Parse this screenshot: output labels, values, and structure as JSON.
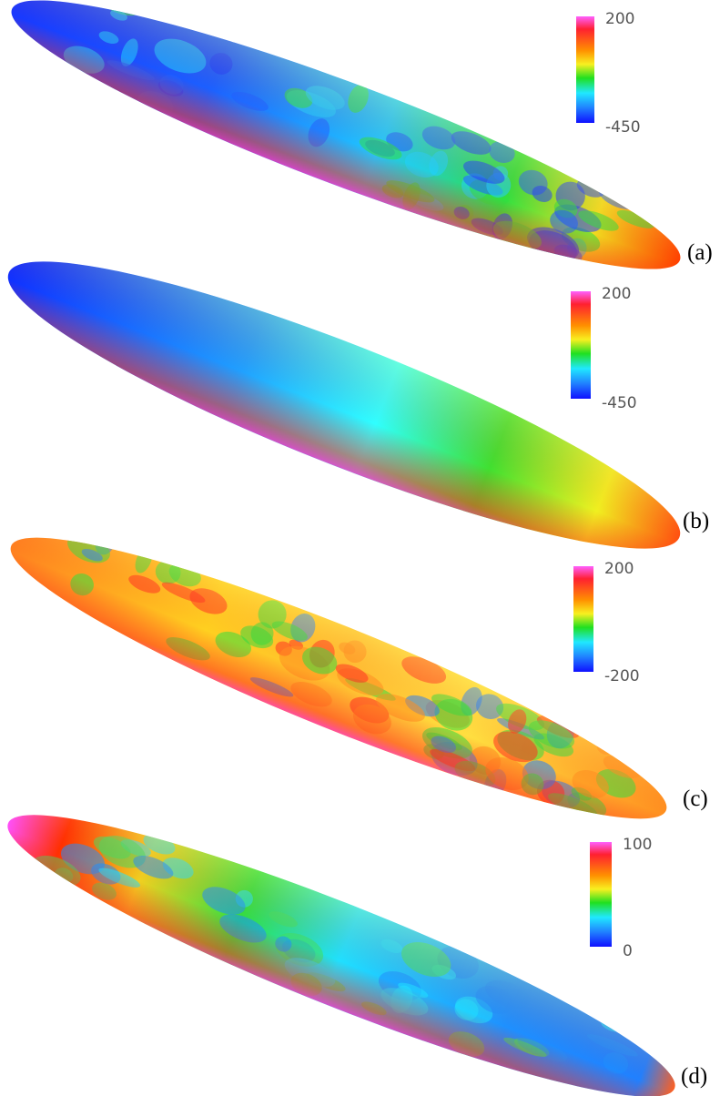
{
  "panels": [
    {
      "label": "(a)",
      "colorbar": {
        "max": 200,
        "min": -450
      }
    },
    {
      "label": "(b)",
      "colorbar": {
        "max": 200,
        "min": -450
      }
    },
    {
      "label": "(c)",
      "colorbar": {
        "max": 200,
        "min": -200
      }
    },
    {
      "label": "(d)",
      "colorbar": {
        "max": 100,
        "min": 0
      }
    }
  ]
}
